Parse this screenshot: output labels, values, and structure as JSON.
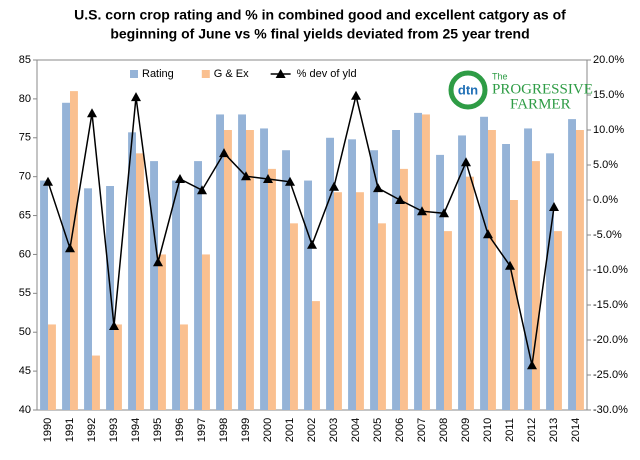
{
  "chart_data": {
    "type": "bar_line",
    "title": [
      "U.S. corn crop rating and %  in combined good and excellent catgory as of",
      "beginning of June vs % final yields deviated from 25 year trend"
    ],
    "logo": {
      "badge": "dtn",
      "small": "The",
      "line1": "PROGRESSIVE",
      "line2": "FARMER"
    },
    "categories": [
      "1990",
      "1991",
      "1992",
      "1993",
      "1994",
      "1995",
      "1996",
      "1997",
      "1998",
      "1999",
      "2000",
      "2001",
      "2002",
      "2003",
      "2004",
      "2005",
      "2006",
      "2007",
      "2008",
      "2009",
      "2010",
      "2011",
      "2012",
      "2013",
      "2014"
    ],
    "series": [
      {
        "name": "Rating",
        "color": "#95b3d7",
        "kind": "bar",
        "values": [
          69.5,
          79.5,
          68.5,
          68.8,
          75.7,
          72,
          69.5,
          72,
          78,
          78,
          76.2,
          73.4,
          69.5,
          75,
          74.8,
          73.4,
          76,
          78.2,
          72.8,
          75.3,
          77.7,
          74.2,
          76.2,
          73,
          77.4
        ]
      },
      {
        "name": "G & Ex",
        "color": "#fac090",
        "kind": "bar",
        "values": [
          51,
          81,
          47,
          51,
          73,
          60,
          51,
          60,
          76,
          76,
          71,
          64,
          54,
          68,
          68,
          64,
          71,
          78,
          63,
          70,
          76,
          67,
          72,
          63,
          76
        ]
      },
      {
        "name": "% dev of yld",
        "color": "#000000",
        "kind": "line",
        "axis": "y2",
        "values": [
          2.6,
          -6.9,
          12.4,
          -18,
          14.7,
          -8.9,
          3,
          1.4,
          6.7,
          3.4,
          3,
          2.6,
          -6.4,
          1.9,
          14.9,
          1.7,
          0,
          -1.6,
          -1.9,
          5.4,
          -4.9,
          -9.4,
          -23.6,
          -1,
          null
        ]
      }
    ],
    "ylim": [
      40,
      85
    ],
    "yticks": [
      40,
      45,
      50,
      55,
      60,
      65,
      70,
      75,
      80,
      85
    ],
    "y2lim": [
      -30,
      20
    ],
    "y2ticks": [
      {
        "value": -30,
        "label": "-30.0%"
      },
      {
        "value": -25,
        "label": "-25.0%"
      },
      {
        "value": -20,
        "label": "-20.0%"
      },
      {
        "value": -15,
        "label": "-15.0%"
      },
      {
        "value": -10,
        "label": "-10.0%"
      },
      {
        "value": -5,
        "label": "-5.0%"
      },
      {
        "value": 0,
        "label": "0.0%"
      },
      {
        "value": 5,
        "label": "5.0%"
      },
      {
        "value": 10,
        "label": "10.0%"
      },
      {
        "value": 15,
        "label": "15.0%"
      },
      {
        "value": 20,
        "label": "20.0%"
      }
    ],
    "grid": false,
    "legend": "top"
  }
}
